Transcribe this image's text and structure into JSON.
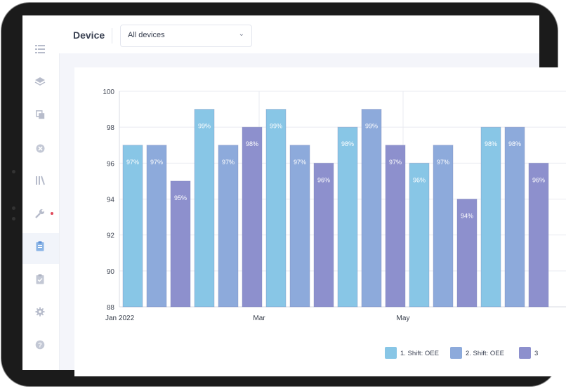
{
  "header": {
    "title": "Device",
    "device_select": {
      "value": "All devices"
    }
  },
  "sidebar": {
    "icons": [
      "list-icon",
      "layers-icon",
      "copy-icon",
      "cancel-icon",
      "library-icon",
      "wrench-icon",
      "clipboard-icon",
      "clipboard-check-icon",
      "gear-icon",
      "help-icon"
    ]
  },
  "chart_data": {
    "type": "bar",
    "ylim": [
      88,
      100
    ],
    "yticks": [
      88,
      90,
      92,
      94,
      96,
      98,
      100
    ],
    "x_tick_labels": [
      "Jan 2022",
      "Mar",
      "May"
    ],
    "colors": [
      "#88c6e6",
      "#8daadb",
      "#8d90cd"
    ],
    "series": [
      {
        "name": "1. Shift: OEE",
        "values": [
          97,
          99,
          99,
          98,
          96,
          98
        ]
      },
      {
        "name": "2. Shift: OEE",
        "values": [
          97,
          97,
          97,
          99,
          97,
          98
        ]
      },
      {
        "name": "3",
        "values": [
          95,
          98,
          96,
          97,
          94,
          96
        ]
      }
    ],
    "data_labels": [
      [
        "97%",
        "99%",
        "99%",
        "98%",
        "96%",
        "98%"
      ],
      [
        "97%",
        "97%",
        "97%",
        "99%",
        "97%",
        "98%"
      ],
      [
        "95%",
        "98%",
        "96%",
        "97%",
        "94%",
        "96%"
      ]
    ]
  }
}
